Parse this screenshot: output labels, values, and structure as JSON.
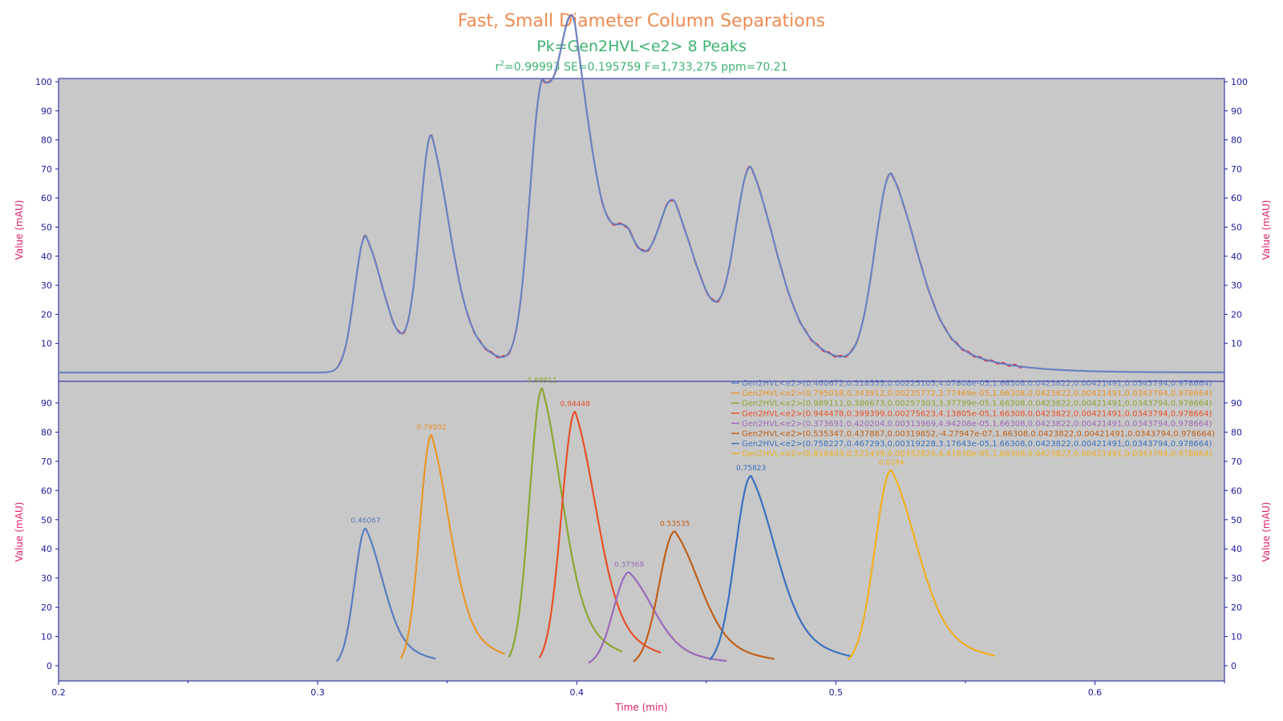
{
  "chart_data": {
    "type": "line",
    "title": "Fast, Small Diameter Column Separations",
    "subtitle": "Pk=Gen2HVL<e2>  8 Peaks",
    "stats": {
      "r2_prefix": "r",
      "r2_sup": "2",
      "r2_rest": "=0.99993  SE=0.195759  F=1,733,275  ppm=70.21"
    },
    "xlabel": "Time (min)",
    "ylabel": "Value (mAU)",
    "xlim": [
      0.2,
      0.65
    ],
    "x_ticks": [
      "0.2",
      "0.3",
      "0.4",
      "0.5",
      "0.6"
    ],
    "upper_panel": {
      "ylim": [
        0,
        100
      ],
      "y_ticks": [
        "10",
        "20",
        "30",
        "40",
        "50",
        "60",
        "70",
        "80",
        "90",
        "100"
      ],
      "series": [
        {
          "color": "#e0202a",
          "role": "data"
        },
        {
          "color": "#6a82c0",
          "role": "fit"
        }
      ]
    },
    "lower_panel": {
      "ylim": [
        0,
        100
      ],
      "y_ticks": [
        "0",
        "10",
        "20",
        "30",
        "40",
        "50",
        "60",
        "70",
        "80",
        "90"
      ]
    },
    "peaks": [
      {
        "label": "0.46067",
        "amplitude": 0.460672,
        "center": 0.318555,
        "width": 0.00225105,
        "color": "#5a7dc0",
        "legend": "Gen2HVL<e2>(0.460672,0.318555,0.00225105,4.07808e-05,1.66308,0.0423822,0.00421491,0.0343794,0.978664)"
      },
      {
        "label": "0.79502",
        "amplitude": 0.795018,
        "center": 0.343912,
        "width": 0.00235772,
        "color": "#e8962a",
        "legend": "Gen2HVL<e2>(0.795018,0.343912,0.00235772,3.77469e-05,1.66308,0.0423822,0.00421491,0.0343794,0.978664)"
      },
      {
        "label": "0.98911",
        "amplitude": 0.989111,
        "center": 0.386673,
        "width": 0.00257303,
        "color": "#8aa832",
        "legend": "Gen2HVL<e2>(0.989111,0.386673,0.00257303,3.37799e-05,1.66308,0.0423822,0.00421491,0.0343794,0.978664)"
      },
      {
        "label": "0.94448",
        "amplitude": 0.944478,
        "center": 0.399399,
        "width": 0.00275623,
        "color": "#e8502a",
        "legend": "Gen2HVL<e2>(0.944478,0.399399,0.00275623,4.13805e-05,1.66308,0.0423822,0.00421491,0.0343794,0.978664)"
      },
      {
        "label": "0.37369",
        "amplitude": 0.373691,
        "center": 0.420204,
        "width": 0.00313969,
        "color": "#9a6ab8",
        "legend": "Gen2HVL<e2>(0.373691,0.420204,0.00313969,4.94208e-05,1.66308,0.0423822,0.00421491,0.0343794,0.978664)"
      },
      {
        "label": "0.53535",
        "amplitude": 0.535347,
        "center": 0.437887,
        "width": 0.00319852,
        "color": "#c0601a",
        "legend": "Gen2HVL<e2>(0.535347,0.437887,0.00319852,-4.27947e-07,1.66308,0.0423822,0.00421491,0.0343794,0.978664)"
      },
      {
        "label": "0.75823",
        "amplitude": 0.758227,
        "center": 0.467293,
        "width": 0.00319228,
        "color": "#3a70c0",
        "legend": "Gen2HVL<e2>(0.758227,0.467293,0.00319228,3.17643e-05,1.66308,0.0423822,0.00421491,0.0343794,0.978664)"
      },
      {
        "label": "0.8184",
        "amplitude": 0.818403,
        "center": 0.521439,
        "width": 0.00332824,
        "color": "#f0b020",
        "legend": "Gen2HVL<e2>(0.818403,0.521439,0.00332824,4.41836e-05,1.66308,0.0423822,0.00421491,0.0343794,0.978664)"
      }
    ],
    "peak_heights": [
      47,
      79,
      95,
      87,
      32,
      46,
      65,
      67
    ],
    "colors": {
      "plot_bg": "#c8c8c8",
      "axis": "#1a1aa0",
      "data": "#e0202a",
      "fit": "#6a82c0"
    }
  }
}
